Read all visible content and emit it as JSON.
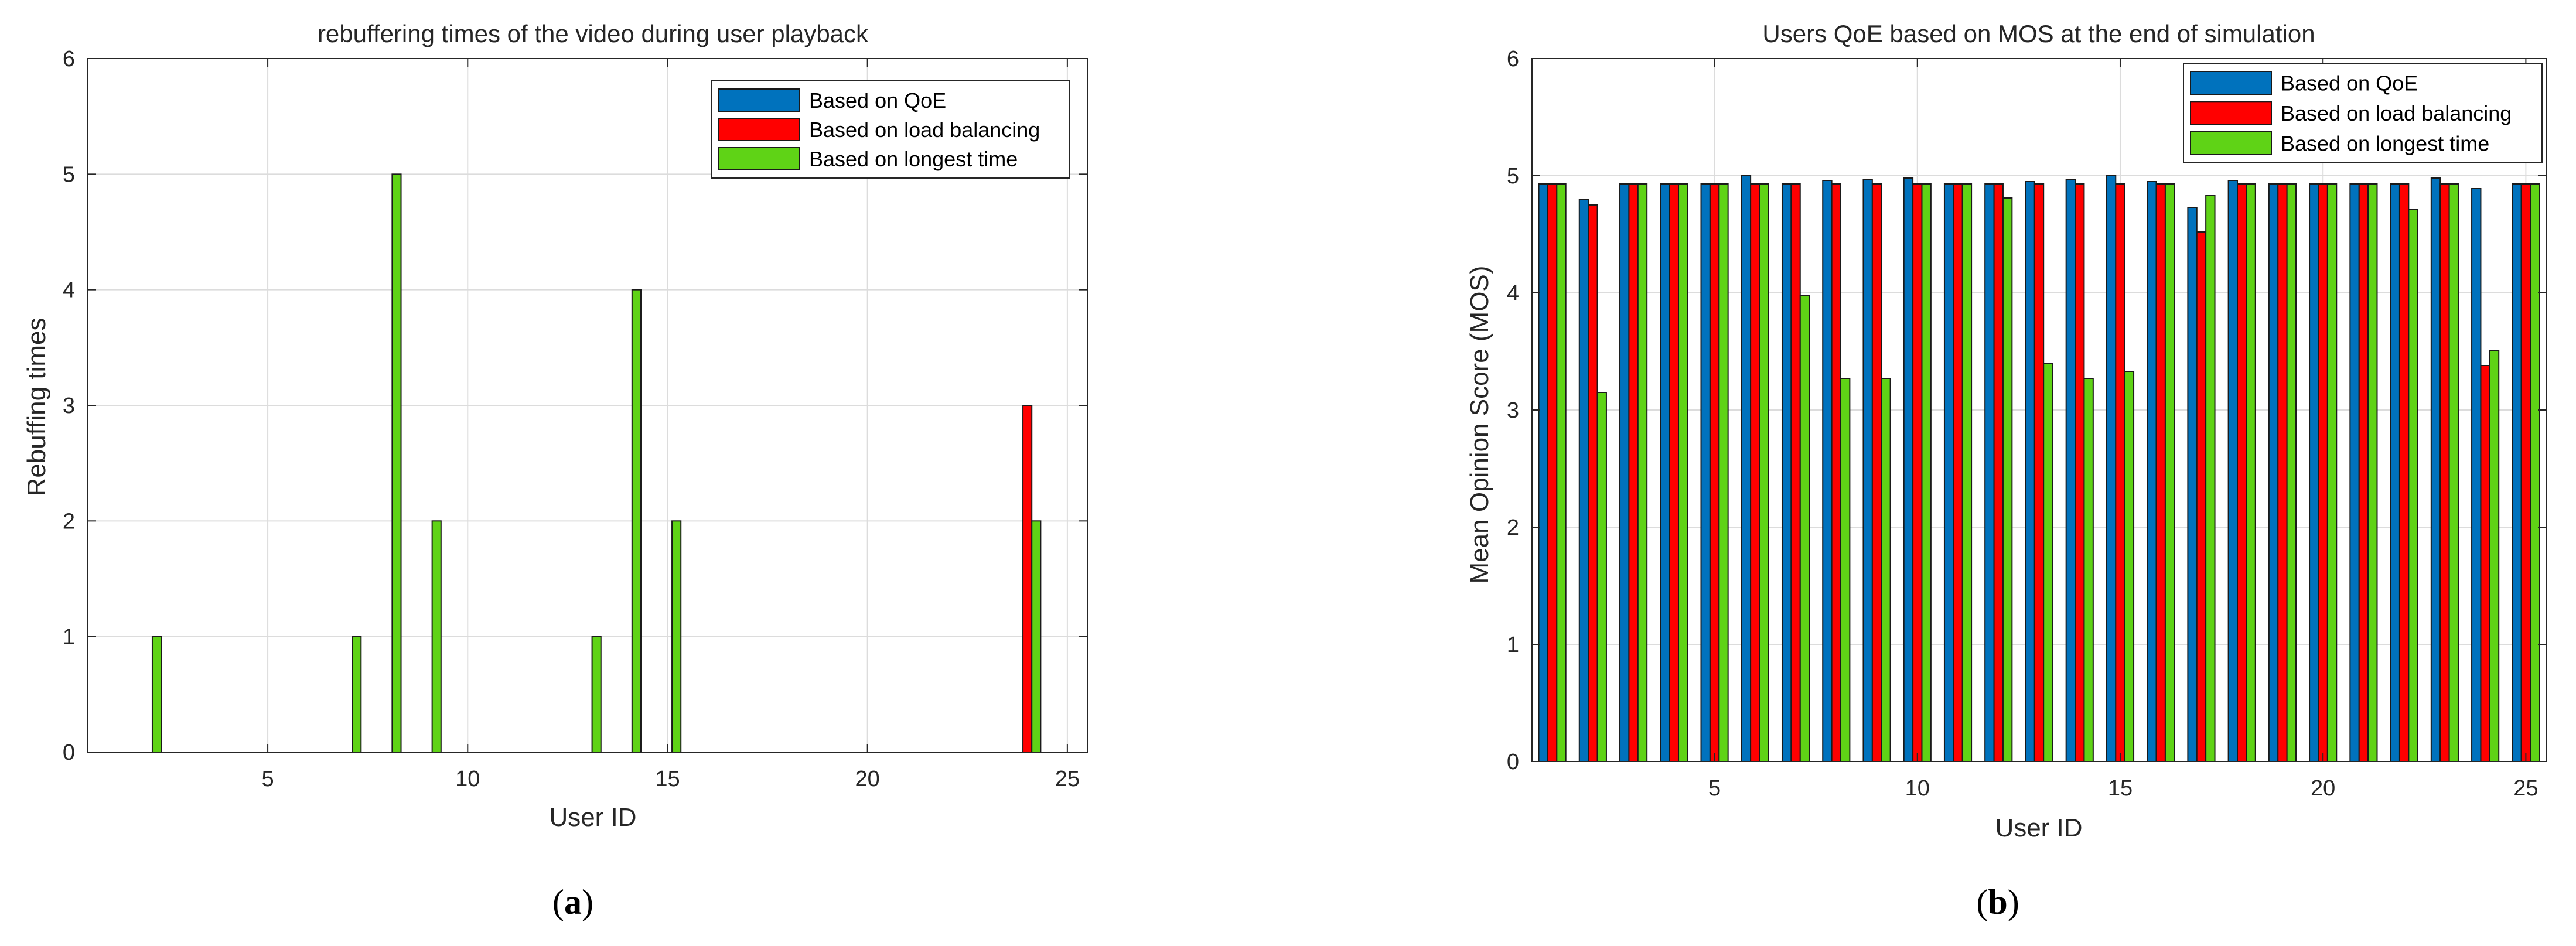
{
  "colors": {
    "qoe": "#0072BD",
    "load": "#FF0000",
    "longest": "#5FD316"
  },
  "chart_data": [
    {
      "type": "bar",
      "title": "rebuffering times of the video during user playback",
      "xlabel": "User ID",
      "ylabel": "Rebuffing times",
      "caption_letter": "a",
      "xlim": [
        0.5,
        25.5
      ],
      "ylim": [
        0,
        6
      ],
      "xticks": [
        5,
        10,
        15,
        20,
        25
      ],
      "yticks": [
        0,
        1,
        2,
        3,
        4,
        5,
        6
      ],
      "grid": true,
      "legend_position": "top-right",
      "x": [
        1,
        2,
        3,
        4,
        5,
        6,
        7,
        8,
        9,
        10,
        11,
        12,
        13,
        14,
        15,
        16,
        17,
        18,
        19,
        20,
        21,
        22,
        23,
        24,
        25
      ],
      "series": [
        {
          "name": "Based on QoE",
          "color_key": "qoe",
          "values": [
            0,
            0,
            0,
            0,
            0,
            0,
            0,
            0,
            0,
            0,
            0,
            0,
            0,
            0,
            0,
            0,
            0,
            0,
            0,
            0,
            0,
            0,
            0,
            0,
            0
          ]
        },
        {
          "name": "Based on load balancing",
          "color_key": "load",
          "values": [
            0,
            0,
            0,
            0,
            0,
            0,
            0,
            0,
            0,
            0,
            0,
            0,
            0,
            0,
            0,
            0,
            0,
            0,
            0,
            0,
            0,
            0,
            0,
            3,
            0
          ]
        },
        {
          "name": "Based on longest time",
          "color_key": "longest",
          "values": [
            0,
            1,
            0,
            0,
            0,
            0,
            1,
            5,
            2,
            0,
            0,
            0,
            1,
            4,
            2,
            0,
            0,
            0,
            0,
            0,
            0,
            0,
            0,
            2,
            0
          ]
        }
      ]
    },
    {
      "type": "bar",
      "title": "Users QoE based on MOS at the end of simulation",
      "xlabel": "User ID",
      "ylabel": "Mean Opinion Score (MOS)",
      "caption_letter": "b",
      "xlim": [
        0.5,
        25.5
      ],
      "ylim": [
        0,
        6
      ],
      "xticks": [
        5,
        10,
        15,
        20,
        25
      ],
      "yticks": [
        0,
        1,
        2,
        3,
        4,
        5,
        6
      ],
      "grid": true,
      "legend_position": "top-right",
      "x": [
        1,
        2,
        3,
        4,
        5,
        6,
        7,
        8,
        9,
        10,
        11,
        12,
        13,
        14,
        15,
        16,
        17,
        18,
        19,
        20,
        21,
        22,
        23,
        24,
        25
      ],
      "series": [
        {
          "name": "Based on QoE",
          "color_key": "qoe",
          "values": [
            4.93,
            4.8,
            4.93,
            4.93,
            4.93,
            5.0,
            4.93,
            4.96,
            4.97,
            4.98,
            4.93,
            4.93,
            4.95,
            4.97,
            5.0,
            4.95,
            4.73,
            4.96,
            4.93,
            4.93,
            4.93,
            4.93,
            4.98,
            4.89,
            4.93
          ]
        },
        {
          "name": "Based on load balancing",
          "color_key": "load",
          "values": [
            4.93,
            4.75,
            4.93,
            4.93,
            4.93,
            4.93,
            4.93,
            4.93,
            4.93,
            4.93,
            4.93,
            4.93,
            4.93,
            4.93,
            4.93,
            4.93,
            4.52,
            4.93,
            4.93,
            4.93,
            4.93,
            4.93,
            4.93,
            3.38,
            4.93
          ]
        },
        {
          "name": "Based on longest time",
          "color_key": "longest",
          "values": [
            4.93,
            3.15,
            4.93,
            4.93,
            4.93,
            4.93,
            3.98,
            3.27,
            3.27,
            4.93,
            4.93,
            4.81,
            3.4,
            3.27,
            3.33,
            4.93,
            4.83,
            4.93,
            4.93,
            4.93,
            4.93,
            4.71,
            4.93,
            3.51,
            4.93
          ]
        }
      ]
    }
  ]
}
